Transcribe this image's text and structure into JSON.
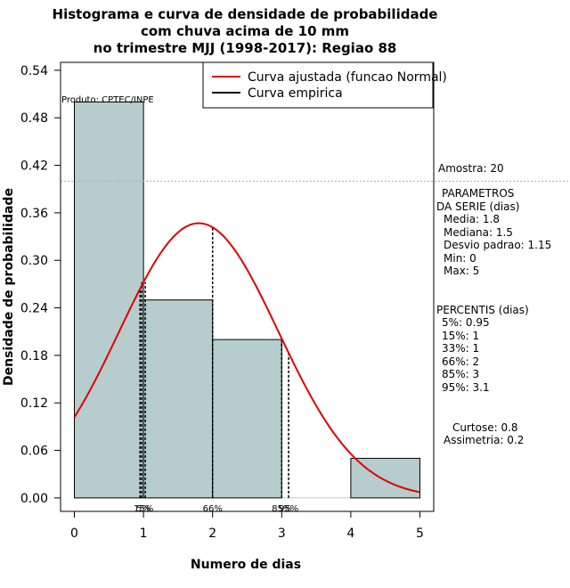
{
  "chart_data": {
    "type": "bar",
    "title_lines": [
      "Histograma e curva de densidade de probabilidade",
      "com chuva acima de 10 mm",
      "no trimestre MJJ (1998-2017): Regiao 88"
    ],
    "xlabel": "Numero de dias",
    "ylabel": "Densidade de probabilidade",
    "xlim": [
      -0.2,
      5.2
    ],
    "ylim": [
      -0.017,
      0.55
    ],
    "xticks": [
      0,
      1,
      2,
      3,
      4,
      5
    ],
    "xtick_labels": [
      "0",
      "1",
      "2",
      "3",
      "4",
      "5"
    ],
    "yticks": [
      0.0,
      0.06,
      0.12,
      0.18,
      0.24,
      0.3,
      0.36,
      0.42,
      0.48,
      0.54
    ],
    "ytick_labels": [
      "0.00",
      "0.06",
      "0.12",
      "0.18",
      "0.24",
      "0.30",
      "0.36",
      "0.42",
      "0.48",
      "0.54"
    ],
    "bins": [
      {
        "from": 0,
        "to": 1,
        "density": 0.5
      },
      {
        "from": 1,
        "to": 2,
        "density": 0.25
      },
      {
        "from": 2,
        "to": 3,
        "density": 0.2
      },
      {
        "from": 3,
        "to": 4,
        "density": 0.0
      },
      {
        "from": 4,
        "to": 5,
        "density": 0.05
      }
    ],
    "bar_color": "#b7cccc",
    "normal_curve": {
      "mean": 1.8,
      "sd": 1.15,
      "color": "#e00000",
      "from": 0,
      "to": 5
    },
    "percentile_lines": [
      {
        "x": 0.95,
        "label": "5%"
      },
      {
        "x": 1.0,
        "label": "15%"
      },
      {
        "x": 1.0,
        "label": "33%"
      },
      {
        "x": 2.0,
        "label": "66%"
      },
      {
        "x": 3.0,
        "label": "85%"
      },
      {
        "x": 3.1,
        "label": "95%"
      }
    ],
    "percentile_axis_labels": [
      {
        "x": 1.0,
        "label": "5%"
      },
      {
        "x": 1.0,
        "label": "15%"
      },
      {
        "x": 2.0,
        "label": "66%"
      },
      {
        "x": 3.0,
        "label": "85%"
      },
      {
        "x": 3.1,
        "label": "95%"
      }
    ],
    "hline_y": 0.4,
    "legend": [
      {
        "label": "Curva ajustada (funcao Normal)",
        "color": "#e00000"
      },
      {
        "label": "Curva empirica",
        "color": "#000000"
      }
    ],
    "product_label": "Produto: CPTEC/INPE",
    "side_panel": [
      "Amostra: 20",
      "PARAMETROS",
      "DA SERIE (dias)",
      "Media: 1.8",
      "Mediana: 1.5",
      "Desvio padrao: 1.15",
      "Min: 0",
      "Max: 5",
      "PERCENTIS (dias)",
      "5%: 0.95",
      "15%: 1",
      "33%: 1",
      "66%: 2",
      "85%: 3",
      "95%: 3.1",
      "Curtose: 0.8",
      "Assimetria: 0.2"
    ]
  }
}
